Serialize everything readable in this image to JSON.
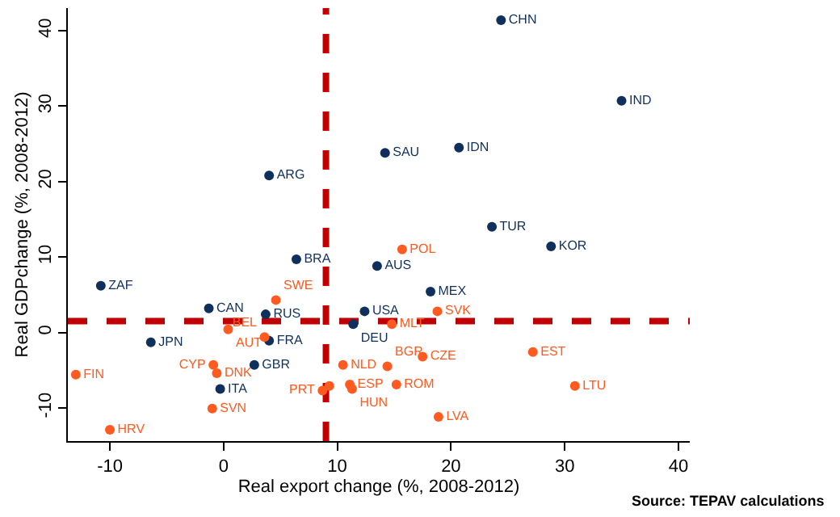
{
  "chart_data": {
    "type": "scatter",
    "xlabel": "Real export change (%, 2008-2012)",
    "ylabel": "Real GDPchange (%, 2008-2012)",
    "xlim": [
      -13.7,
      41
    ],
    "ylim": [
      -14.4,
      43
    ],
    "xticks": [
      -10,
      0,
      10,
      20,
      30,
      40
    ],
    "yticks": [
      -10,
      0,
      10,
      20,
      30,
      40
    ],
    "grid": false,
    "marker": "circle",
    "series": [
      {
        "color": "#0f2f5c",
        "x": [
          24.4,
          35.0,
          20.7,
          14.2,
          4.0,
          23.6,
          28.8,
          6.4,
          13.5,
          18.2,
          -10.8,
          -1.3,
          12.4,
          3.7,
          11.4,
          -6.4,
          2.7,
          -0.3,
          4.0
        ],
        "values": [
          41.4,
          30.7,
          24.5,
          23.8,
          20.8,
          14.0,
          11.4,
          9.7,
          8.8,
          5.4,
          6.2,
          3.2,
          2.8,
          2.4,
          1.1,
          -1.3,
          -4.3,
          -7.5,
          -1.1
        ],
        "value_labels": [
          "CHN",
          "IND",
          "IDN",
          "SAU",
          "ARG",
          "TUR",
          "KOR",
          "BRA",
          "AUS",
          "MEX",
          "ZAF",
          "CAN",
          "USA",
          "RUS",
          "DEU",
          "JPN",
          "GBR",
          "ITA",
          "FRA"
        ]
      },
      {
        "color": "#ff5a1f",
        "x": [
          15.7,
          4.6,
          18.8,
          14.8,
          0.4,
          3.6,
          -0.9,
          -0.6,
          -1.0,
          -13.0,
          -10.0,
          10.5,
          14.4,
          17.5,
          15.2,
          11.1,
          11.3,
          8.7,
          9.3,
          27.2,
          30.9,
          18.9
        ],
        "values": [
          11.0,
          4.3,
          2.8,
          1.1,
          0.4,
          -0.6,
          -4.3,
          -5.4,
          -10.1,
          -5.6,
          -12.9,
          -4.3,
          -4.5,
          -3.2,
          -6.9,
          -6.9,
          -7.5,
          -7.7,
          -7.1,
          -2.6,
          -7.1,
          -11.2
        ],
        "value_labels": [
          "POL",
          "SWE",
          "SVK",
          "MLT",
          "AUT",
          "BEL",
          "CYP",
          "DNK",
          "SVN",
          "FIN",
          "HRV",
          "NLD",
          "BGR",
          "CZE",
          "ROM",
          "ESP",
          "HUN",
          "PRT",
          null,
          "EST",
          "LTU",
          "LVA"
        ]
      }
    ],
    "ref_lines": [
      {
        "axis": "x",
        "value": 9,
        "color": "#c00000",
        "line_style": "dashed"
      },
      {
        "axis": "y",
        "value": 1.5,
        "color": "#c00000",
        "line_style": "dashed"
      }
    ],
    "annotations": [
      "Source: TEPAV calculations"
    ]
  }
}
